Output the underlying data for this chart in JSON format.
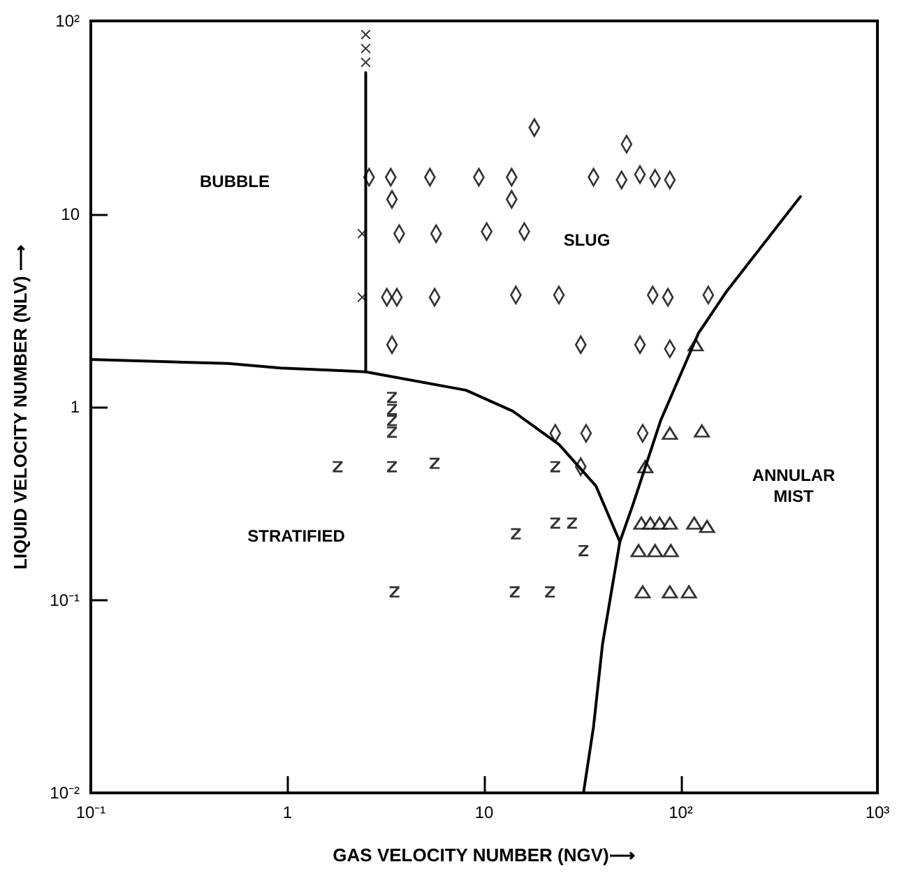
{
  "chart_data": {
    "type": "scatter",
    "xlabel": "GAS VELOCITY NUMBER (NGV)⟶",
    "ylabel": "LIQUID VELOCITY NUMBER (NLV) ⟶",
    "log": "xy",
    "grid": false,
    "xlim": [
      0.1,
      1000
    ],
    "ylim": [
      0.01,
      100
    ],
    "xticks": [
      {
        "value": 0.1,
        "label": "10⁻¹"
      },
      1,
      10,
      {
        "value": 100,
        "label": "10²"
      },
      {
        "value": 1000,
        "label": "10³"
      }
    ],
    "yticks": [
      {
        "value": 0.01,
        "label": "10⁻²"
      },
      {
        "value": 0.1,
        "label": "10⁻¹"
      },
      1,
      10,
      {
        "value": 100,
        "label": "10²"
      }
    ],
    "annotations": [
      "BUBBLE",
      "SLUG",
      "STRATIFIED",
      "ANNULAR\nMIST"
    ],
    "series": [
      {
        "type": "line",
        "color": "#000000",
        "marker": "none",
        "line_style": "solid",
        "x": [
          0.1,
          0.5,
          0.92,
          2.5,
          8.1,
          14,
          24,
          37,
          49
        ],
        "values": [
          1.76,
          1.68,
          1.59,
          1.52,
          1.22,
          0.95,
          0.64,
          0.39,
          0.2
        ]
      },
      {
        "type": "line",
        "color": "#000000",
        "marker": "none",
        "line_style": "solid",
        "x": [
          32,
          36,
          40,
          49,
          57,
          79,
          123,
          171,
          406
        ],
        "values": [
          0.01,
          0.022,
          0.059,
          0.2,
          0.31,
          0.85,
          2.41,
          3.97,
          12.3
        ]
      },
      {
        "type": "line",
        "color": "#000000",
        "marker": "none",
        "line_style": "solid",
        "x": [
          2.5,
          2.5
        ],
        "values": [
          1.52,
          54
        ]
      },
      {
        "color": "#000000",
        "marker": "cross",
        "x": [
          2.5,
          2.5,
          2.5,
          2.4,
          2.4
        ],
        "values": [
          85,
          72,
          61,
          7.9,
          3.7
        ]
      },
      {
        "color": "#000000",
        "marker": "diamond",
        "x": [
          2.6,
          3.35,
          5.3,
          9.4,
          13.8,
          36,
          18,
          3.4,
          13.8,
          3.7,
          5.7,
          10.3,
          16,
          3.2,
          3.6,
          5.6,
          14.5,
          24,
          3.4,
          31,
          53,
          50,
          62,
          74,
          88,
          72,
          86,
          138,
          62,
          88,
          23,
          33,
          31,
          64
        ],
        "values": [
          15.5,
          15.5,
          15.5,
          15.5,
          15.5,
          15.5,
          28,
          11.9,
          11.9,
          7.9,
          7.9,
          8.1,
          8.1,
          3.7,
          3.7,
          3.7,
          3.8,
          3.8,
          2.1,
          2.1,
          23,
          15,
          16,
          15.3,
          15,
          3.8,
          3.7,
          3.8,
          2.1,
          2.0,
          0.73,
          0.73,
          0.49,
          0.73
        ]
      },
      {
        "color": "#000000",
        "marker": "triangle",
        "x": [
          119,
          88,
          128,
          66,
          63,
          70,
          78,
          88,
          117,
          136,
          61,
          74,
          89,
          64,
          88,
          110
        ],
        "values": [
          2.1,
          0.73,
          0.75,
          0.49,
          0.25,
          0.25,
          0.25,
          0.25,
          0.25,
          0.24,
          0.18,
          0.18,
          0.18,
          0.11,
          0.11,
          0.11
        ]
      },
      {
        "color": "#000000",
        "x": [
          3.4,
          3.4,
          3.4,
          3.4,
          1.8,
          3.4,
          5.6,
          23,
          14.5,
          23,
          28,
          32,
          3.5,
          14.3,
          21.6
        ],
        "values": [
          1.12,
          0.97,
          0.85,
          0.74,
          0.49,
          0.49,
          0.51,
          0.49,
          0.22,
          0.25,
          0.25,
          0.18,
          0.11,
          0.11,
          0.11
        ]
      }
    ]
  }
}
